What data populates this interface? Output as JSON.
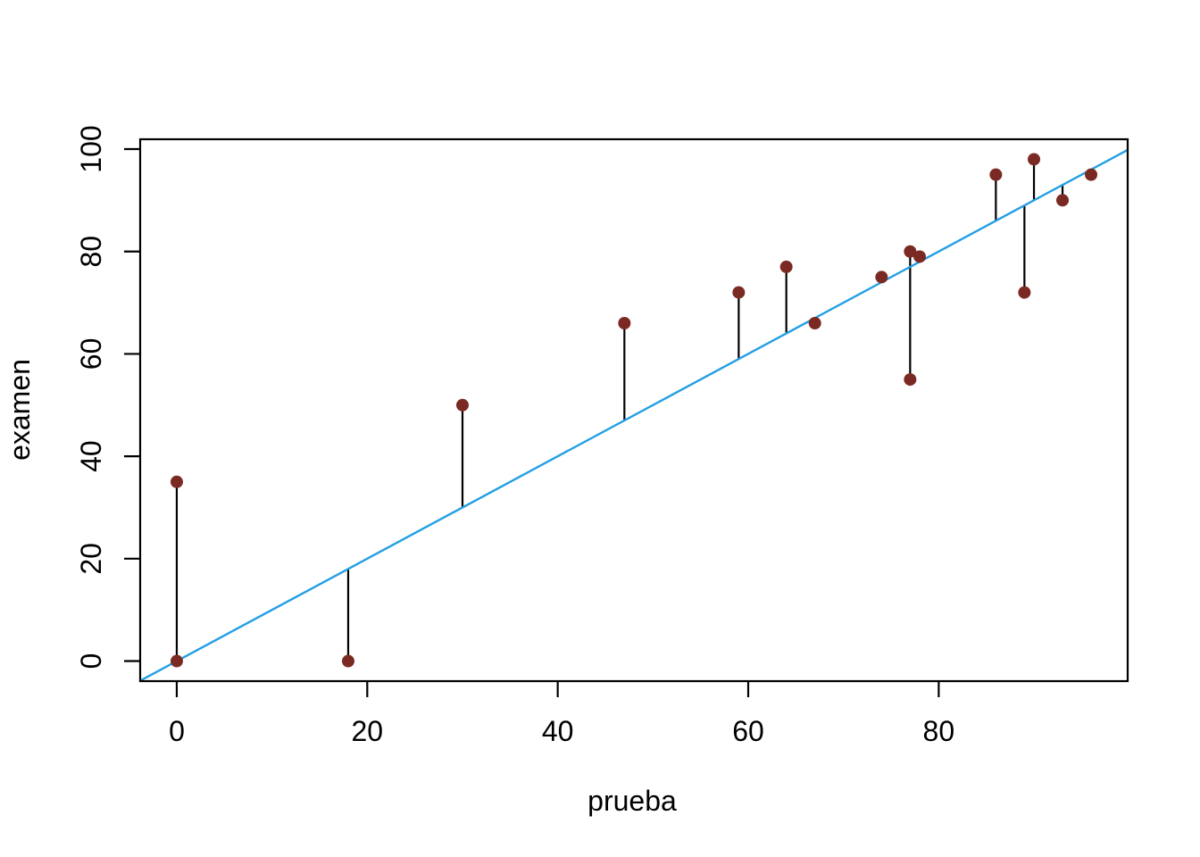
{
  "figure": {
    "background": "#ffffff"
  },
  "chart_data": {
    "type": "scatter",
    "title": "",
    "xlabel": "prueba",
    "ylabel": "examen",
    "x_ticks": [
      0,
      20,
      40,
      60,
      80
    ],
    "y_ticks": [
      0,
      20,
      40,
      60,
      80,
      100
    ],
    "xlim": [
      -3.84,
      99.84
    ],
    "ylim": [
      -3.92,
      101.92
    ],
    "grid": false,
    "legend": null,
    "points": [
      {
        "x": 0,
        "y": 35
      },
      {
        "x": 0,
        "y": 0
      },
      {
        "x": 18,
        "y": 0
      },
      {
        "x": 30,
        "y": 50
      },
      {
        "x": 47,
        "y": 66
      },
      {
        "x": 59,
        "y": 72
      },
      {
        "x": 64,
        "y": 77
      },
      {
        "x": 67,
        "y": 66
      },
      {
        "x": 74,
        "y": 75
      },
      {
        "x": 77,
        "y": 80
      },
      {
        "x": 77,
        "y": 55
      },
      {
        "x": 78,
        "y": 79
      },
      {
        "x": 86,
        "y": 95
      },
      {
        "x": 89,
        "y": 72
      },
      {
        "x": 90,
        "y": 98
      },
      {
        "x": 93,
        "y": 90
      },
      {
        "x": 96,
        "y": 95
      }
    ],
    "line": {
      "type": "identity",
      "slope": 1,
      "intercept": 0,
      "color": "#239FE3"
    },
    "residual_segments": true,
    "colors": {
      "point": "#7A2A23",
      "segment": "#000000",
      "axis": "#000000",
      "text": "#000000"
    }
  }
}
